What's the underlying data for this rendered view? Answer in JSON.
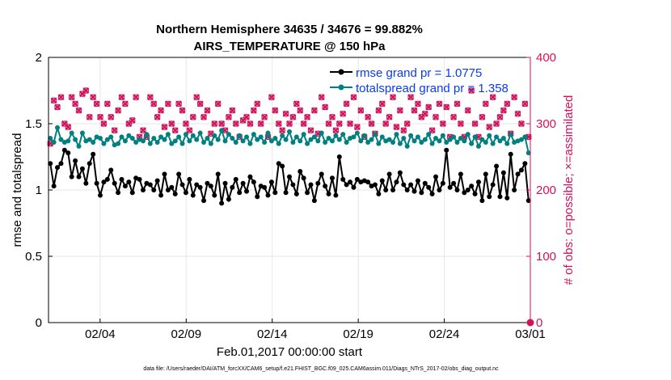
{
  "chart_data": {
    "type": "line",
    "title_line1": "Northern Hemisphere 34635 / 34676 = 99.882%",
    "title_line2": "AIRS_TEMPERATURE @ 150 hPa",
    "xlabel": "Feb.01,2017 00:00:00 start",
    "ylabel_left": "rmse and totalspread",
    "ylabel_right": "# of obs: o=possible; ×=assimilated",
    "footnote": "data file: /Users/raeder/DAI/ATM_forcXX/CAM6_setup/f.e21.FHIST_BGC.f09_025.CAM6assim.011/Diags_NTrS_2017-02/obs_diag_output.nc",
    "xlim": [
      0,
      28
    ],
    "ylim_left": [
      0,
      2
    ],
    "ylim_right": [
      0,
      400
    ],
    "x_ticks": [
      {
        "x": 3,
        "label": "02/04"
      },
      {
        "x": 8,
        "label": "02/09"
      },
      {
        "x": 13,
        "label": "02/14"
      },
      {
        "x": 18,
        "label": "02/19"
      },
      {
        "x": 23,
        "label": "02/24"
      },
      {
        "x": 28,
        "label": "03/01"
      }
    ],
    "y_ticks_left": [
      {
        "v": 0,
        "label": "0"
      },
      {
        "v": 0.5,
        "label": "0.5"
      },
      {
        "v": 1,
        "label": "1"
      },
      {
        "v": 1.5,
        "label": "1.5"
      },
      {
        "v": 2,
        "label": "2"
      }
    ],
    "y_ticks_right": [
      {
        "v": 0,
        "label": "0"
      },
      {
        "v": 100,
        "label": "100"
      },
      {
        "v": 200,
        "label": "200"
      },
      {
        "v": 300,
        "label": "300"
      },
      {
        "v": 400,
        "label": "400"
      }
    ],
    "grid": true,
    "legend_position": "top-right",
    "series": [
      {
        "name": "rmse grand pr = 1.0775",
        "color": "#000000",
        "values": [
          1.2,
          1.03,
          1.17,
          1.2,
          1.3,
          1.28,
          1.1,
          1.22,
          1.1,
          1.16,
          1.05,
          1.2,
          1.27,
          1.05,
          0.96,
          1.06,
          1.08,
          1.15,
          1.05,
          0.98,
          1.08,
          1.03,
          1.06,
          0.98,
          1.09,
          1.08,
          1.0,
          1.05,
          1.04,
          1.0,
          1.07,
          0.96,
          1.12,
          1.0,
          1.02,
          0.97,
          1.12,
          1.04,
          0.98,
          1.08,
          0.96,
          1.04,
          1.02,
          0.92,
          1.05,
          1.03,
          0.96,
          1.12,
          0.9,
          1.05,
          0.93,
          1.02,
          1.08,
          0.98,
          1.05,
          0.99,
          1.1,
          1.06,
          0.95,
          1.03,
          1.02,
          0.96,
          1.06,
          0.98,
          1.2,
          1.18,
          0.98,
          1.1,
          1.04,
          0.97,
          1.14,
          1.09,
          0.98,
          1.04,
          0.92,
          1.05,
          1.12,
          1.03,
          0.97,
          1.09,
          0.96,
          1.25,
          1.08,
          1.04,
          1.06,
          1.02,
          1.08,
          1.06,
          1.07,
          1.06,
          1.03,
          1.04,
          0.97,
          1.07,
          1.0,
          1.12,
          1.0,
          1.06,
          1.13,
          1.04,
          1.0,
          1.04,
          0.99,
          1.07,
          0.98,
          1.05,
          1.02,
          0.97,
          1.1,
          1.0,
          1.05,
          1.3,
          1.02,
          1.05,
          1.0,
          1.12,
          0.98,
          1.0,
          1.03,
          0.97,
          1.06,
          0.92,
          1.12,
          0.95,
          1.04,
          1.18,
          0.95,
          1.13,
          0.94,
          1.27,
          1.0,
          1.12,
          1.15,
          1.2,
          0.92
        ]
      },
      {
        "name": "totalspread grand pr = 1.358",
        "color": "#008080",
        "values": [
          1.39,
          1.36,
          1.47,
          1.38,
          1.36,
          1.37,
          1.43,
          1.38,
          1.33,
          1.43,
          1.37,
          1.38,
          1.36,
          1.4,
          1.39,
          1.35,
          1.38,
          1.4,
          1.34,
          1.35,
          1.4,
          1.37,
          1.41,
          1.39,
          1.36,
          1.38,
          1.37,
          1.42,
          1.35,
          1.39,
          1.36,
          1.4,
          1.38,
          1.42,
          1.35,
          1.37,
          1.4,
          1.35,
          1.42,
          1.37,
          1.41,
          1.38,
          1.43,
          1.36,
          1.39,
          1.35,
          1.41,
          1.38,
          1.45,
          1.37,
          1.42,
          1.39,
          1.36,
          1.41,
          1.37,
          1.4,
          1.35,
          1.42,
          1.38,
          1.4,
          1.36,
          1.43,
          1.37,
          1.39,
          1.35,
          1.41,
          1.38,
          1.44,
          1.36,
          1.4,
          1.37,
          1.42,
          1.35,
          1.38,
          1.4,
          1.37,
          1.43,
          1.36,
          1.39,
          1.37,
          1.41,
          1.38,
          1.42,
          1.36,
          1.39,
          1.4,
          1.43,
          1.37,
          1.41,
          1.36,
          1.38,
          1.42,
          1.35,
          1.4,
          1.37,
          1.38,
          1.36,
          1.42,
          1.35,
          1.39,
          1.33,
          1.41,
          1.37,
          1.4,
          1.36,
          1.38,
          1.42,
          1.35,
          1.39,
          1.37,
          1.41,
          1.36,
          1.38,
          1.4,
          1.36,
          1.39,
          1.37,
          1.42,
          1.35,
          1.4,
          1.33,
          1.38,
          1.36,
          1.41,
          1.35,
          1.4,
          1.37,
          1.39,
          1.35,
          1.42,
          1.36,
          1.37,
          1.38,
          1.4,
          1.28
        ]
      }
    ],
    "obs_series": [
      {
        "name": "possible",
        "marker": "o",
        "color": "#d0135a",
        "values": [
          270,
          335,
          325,
          340,
          300,
          295,
          340,
          330,
          320,
          345,
          350,
          310,
          340,
          330,
          310,
          300,
          330,
          310,
          290,
          320,
          340,
          330,
          300,
          305,
          340,
          280,
          290,
          280,
          340,
          330,
          310,
          320,
          295,
          330,
          300,
          290,
          330,
          320,
          300,
          290,
          310,
          340,
          330,
          310,
          320,
          285,
          300,
          330,
          300,
          290,
          310,
          320,
          300,
          280,
          305,
          310,
          300,
          320,
          330,
          300,
          310,
          280,
          340,
          320,
          300,
          290,
          315,
          300,
          310,
          330,
          320,
          300,
          310,
          290,
          320,
          285,
          340,
          325,
          300,
          310,
          290,
          300,
          315,
          330,
          300,
          340,
          295,
          320,
          280,
          310,
          300,
          285,
          320,
          330,
          300,
          310,
          340,
          295,
          320,
          290,
          300,
          340,
          320,
          330,
          310,
          315,
          325,
          290,
          310,
          330,
          300,
          325,
          280,
          310,
          330,
          300,
          280,
          320,
          350,
          300,
          280,
          310,
          330,
          295,
          340,
          300,
          310,
          320,
          330,
          285,
          340,
          315,
          300,
          330,
          280
        ]
      },
      {
        "name": "assimilated",
        "marker": "x",
        "color": "#d0135a",
        "values": [
          270,
          335,
          325,
          340,
          300,
          295,
          340,
          330,
          320,
          345,
          350,
          310,
          340,
          330,
          310,
          300,
          330,
          310,
          290,
          320,
          340,
          330,
          300,
          305,
          340,
          280,
          290,
          280,
          340,
          330,
          310,
          320,
          295,
          330,
          300,
          290,
          330,
          320,
          300,
          290,
          310,
          340,
          330,
          310,
          320,
          285,
          300,
          330,
          300,
          290,
          310,
          320,
          300,
          280,
          305,
          310,
          300,
          320,
          330,
          300,
          310,
          280,
          340,
          320,
          300,
          290,
          315,
          300,
          310,
          330,
          320,
          300,
          310,
          290,
          320,
          285,
          340,
          325,
          300,
          310,
          290,
          300,
          315,
          330,
          300,
          340,
          295,
          320,
          280,
          310,
          300,
          285,
          320,
          330,
          300,
          310,
          340,
          295,
          320,
          290,
          300,
          340,
          320,
          330,
          310,
          315,
          325,
          290,
          310,
          330,
          300,
          325,
          280,
          310,
          330,
          300,
          280,
          320,
          350,
          300,
          280,
          310,
          330,
          295,
          340,
          300,
          310,
          320,
          330,
          285,
          340,
          315,
          300,
          330,
          280
        ]
      }
    ],
    "obs_end_marker": {
      "x": 28,
      "value": 0
    }
  }
}
